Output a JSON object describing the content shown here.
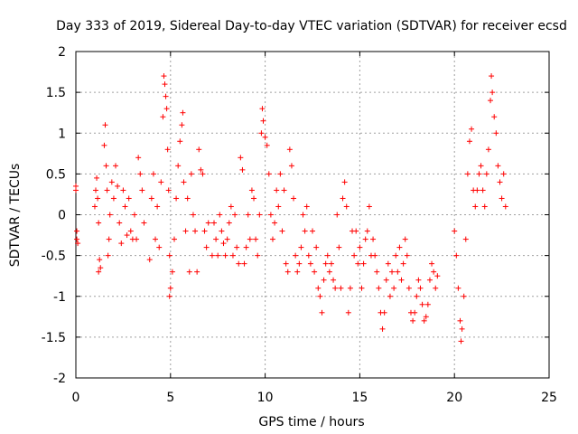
{
  "chart_data": {
    "type": "scatter",
    "title": "Day 333 of 2019, Sidereal Day-to-day VTEC variation (SDTVAR) for receiver ecsd",
    "xlabel": "GPS time / hours",
    "ylabel": "SDTVAR / TECUs",
    "xlim": [
      0,
      25
    ],
    "ylim": [
      -2,
      2
    ],
    "grid": true,
    "xticks": [
      "0",
      "5",
      "10",
      "15",
      "20",
      "25"
    ],
    "yticks": [
      "-2",
      "-1.5",
      "-1",
      "-0.5",
      "0",
      "0.5",
      "1",
      "1.5",
      "2"
    ],
    "marker": "+",
    "color": "#ff0000",
    "series": [
      {
        "name": "SDTVAR",
        "points": [
          [
            0.0,
            0.35
          ],
          [
            0.0,
            0.3
          ],
          [
            0.05,
            -0.2
          ],
          [
            0.05,
            -0.3
          ],
          [
            0.1,
            -0.35
          ],
          [
            1.0,
            0.1
          ],
          [
            1.05,
            0.3
          ],
          [
            1.1,
            0.45
          ],
          [
            1.15,
            0.2
          ],
          [
            1.2,
            -0.1
          ],
          [
            1.25,
            -0.55
          ],
          [
            1.3,
            -0.65
          ],
          [
            1.2,
            -0.7
          ],
          [
            1.5,
            0.85
          ],
          [
            1.55,
            1.1
          ],
          [
            1.6,
            0.6
          ],
          [
            1.65,
            0.3
          ],
          [
            1.7,
            -0.5
          ],
          [
            1.75,
            -0.3
          ],
          [
            1.8,
            0.0
          ],
          [
            1.9,
            0.4
          ],
          [
            2.0,
            0.2
          ],
          [
            2.1,
            0.6
          ],
          [
            2.2,
            0.35
          ],
          [
            2.3,
            -0.1
          ],
          [
            2.4,
            -0.35
          ],
          [
            2.5,
            0.3
          ],
          [
            2.6,
            0.1
          ],
          [
            2.7,
            -0.25
          ],
          [
            2.8,
            0.2
          ],
          [
            2.9,
            -0.2
          ],
          [
            3.0,
            -0.3
          ],
          [
            3.1,
            0.0
          ],
          [
            3.2,
            -0.3
          ],
          [
            3.3,
            0.7
          ],
          [
            3.4,
            0.5
          ],
          [
            3.5,
            0.3
          ],
          [
            3.6,
            -0.1
          ],
          [
            3.9,
            -0.55
          ],
          [
            4.0,
            0.2
          ],
          [
            4.1,
            0.5
          ],
          [
            4.2,
            -0.3
          ],
          [
            4.3,
            0.1
          ],
          [
            4.4,
            -0.4
          ],
          [
            4.5,
            0.4
          ],
          [
            4.6,
            1.2
          ],
          [
            4.65,
            1.7
          ],
          [
            4.7,
            1.6
          ],
          [
            4.75,
            1.45
          ],
          [
            4.8,
            1.3
          ],
          [
            4.85,
            0.8
          ],
          [
            4.9,
            0.3
          ],
          [
            4.95,
            -0.5
          ],
          [
            5.0,
            -0.9
          ],
          [
            4.95,
            -1.0
          ],
          [
            5.1,
            -0.7
          ],
          [
            5.2,
            -0.3
          ],
          [
            5.3,
            0.2
          ],
          [
            5.4,
            0.6
          ],
          [
            5.5,
            0.9
          ],
          [
            5.6,
            1.1
          ],
          [
            5.65,
            1.25
          ],
          [
            5.7,
            0.4
          ],
          [
            5.8,
            -0.2
          ],
          [
            5.9,
            0.2
          ],
          [
            6.0,
            -0.7
          ],
          [
            6.1,
            0.5
          ],
          [
            6.2,
            0.0
          ],
          [
            6.3,
            -0.2
          ],
          [
            6.4,
            -0.7
          ],
          [
            6.5,
            0.8
          ],
          [
            6.6,
            0.55
          ],
          [
            6.7,
            0.5
          ],
          [
            6.8,
            -0.2
          ],
          [
            6.9,
            -0.4
          ],
          [
            7.0,
            -0.1
          ],
          [
            7.2,
            -0.5
          ],
          [
            7.3,
            -0.1
          ],
          [
            7.4,
            -0.3
          ],
          [
            7.5,
            -0.5
          ],
          [
            7.6,
            0.0
          ],
          [
            7.7,
            -0.2
          ],
          [
            7.8,
            -0.35
          ],
          [
            7.9,
            -0.5
          ],
          [
            8.0,
            -0.3
          ],
          [
            8.1,
            -0.1
          ],
          [
            8.2,
            0.1
          ],
          [
            8.3,
            -0.5
          ],
          [
            8.4,
            0.0
          ],
          [
            8.5,
            -0.4
          ],
          [
            8.6,
            -0.6
          ],
          [
            8.7,
            0.7
          ],
          [
            8.8,
            0.55
          ],
          [
            8.9,
            -0.6
          ],
          [
            9.0,
            -0.4
          ],
          [
            9.1,
            0.0
          ],
          [
            9.2,
            -0.3
          ],
          [
            9.3,
            0.3
          ],
          [
            9.4,
            0.2
          ],
          [
            9.5,
            -0.3
          ],
          [
            9.6,
            -0.5
          ],
          [
            9.7,
            0.0
          ],
          [
            9.8,
            1.0
          ],
          [
            9.85,
            1.3
          ],
          [
            9.9,
            1.15
          ],
          [
            10.0,
            0.95
          ],
          [
            10.1,
            0.85
          ],
          [
            10.2,
            0.5
          ],
          [
            10.3,
            0.0
          ],
          [
            10.4,
            -0.3
          ],
          [
            10.5,
            -0.1
          ],
          [
            10.6,
            0.3
          ],
          [
            10.7,
            0.1
          ],
          [
            10.8,
            0.5
          ],
          [
            10.9,
            -0.2
          ],
          [
            11.0,
            0.3
          ],
          [
            11.1,
            -0.6
          ],
          [
            11.2,
            -0.7
          ],
          [
            11.3,
            0.8
          ],
          [
            11.4,
            0.6
          ],
          [
            11.5,
            0.2
          ],
          [
            11.6,
            -0.5
          ],
          [
            11.7,
            -0.7
          ],
          [
            11.8,
            -0.6
          ],
          [
            11.9,
            -0.4
          ],
          [
            12.0,
            0.0
          ],
          [
            12.1,
            -0.2
          ],
          [
            12.2,
            0.1
          ],
          [
            12.3,
            -0.5
          ],
          [
            12.4,
            -0.6
          ],
          [
            12.5,
            -0.2
          ],
          [
            12.6,
            -0.7
          ],
          [
            12.7,
            -0.4
          ],
          [
            12.8,
            -0.9
          ],
          [
            12.9,
            -1.0
          ],
          [
            13.0,
            -1.2
          ],
          [
            13.1,
            -0.8
          ],
          [
            13.2,
            -0.6
          ],
          [
            13.3,
            -0.5
          ],
          [
            13.4,
            -0.7
          ],
          [
            13.5,
            -0.6
          ],
          [
            13.6,
            -0.8
          ],
          [
            13.7,
            -0.9
          ],
          [
            13.8,
            0.0
          ],
          [
            13.9,
            -0.4
          ],
          [
            14.0,
            -0.9
          ],
          [
            14.1,
            0.2
          ],
          [
            14.2,
            0.4
          ],
          [
            14.3,
            0.1
          ],
          [
            14.4,
            -1.2
          ],
          [
            14.5,
            -0.9
          ],
          [
            14.6,
            -0.2
          ],
          [
            14.7,
            -0.5
          ],
          [
            14.8,
            -0.2
          ],
          [
            14.9,
            -0.6
          ],
          [
            15.0,
            -0.4
          ],
          [
            15.1,
            -0.9
          ],
          [
            15.2,
            -0.6
          ],
          [
            15.3,
            -0.3
          ],
          [
            15.4,
            -0.2
          ],
          [
            15.5,
            0.1
          ],
          [
            15.6,
            -0.5
          ],
          [
            15.7,
            -0.3
          ],
          [
            15.8,
            -0.5
          ],
          [
            15.9,
            -0.7
          ],
          [
            16.0,
            -0.9
          ],
          [
            16.1,
            -1.2
          ],
          [
            16.2,
            -1.4
          ],
          [
            16.3,
            -1.2
          ],
          [
            16.4,
            -0.8
          ],
          [
            16.5,
            -0.6
          ],
          [
            16.6,
            -1.0
          ],
          [
            16.7,
            -0.7
          ],
          [
            16.8,
            -0.9
          ],
          [
            16.9,
            -0.5
          ],
          [
            17.0,
            -0.7
          ],
          [
            17.1,
            -0.4
          ],
          [
            17.2,
            -0.8
          ],
          [
            17.3,
            -0.6
          ],
          [
            17.4,
            -0.3
          ],
          [
            17.5,
            -0.5
          ],
          [
            17.6,
            -0.9
          ],
          [
            17.7,
            -1.2
          ],
          [
            17.8,
            -1.3
          ],
          [
            17.9,
            -1.2
          ],
          [
            18.0,
            -1.0
          ],
          [
            18.1,
            -0.8
          ],
          [
            18.2,
            -0.9
          ],
          [
            18.3,
            -1.1
          ],
          [
            18.4,
            -1.3
          ],
          [
            18.5,
            -1.25
          ],
          [
            18.6,
            -1.1
          ],
          [
            18.7,
            -0.8
          ],
          [
            18.8,
            -0.6
          ],
          [
            18.9,
            -0.7
          ],
          [
            19.0,
            -0.9
          ],
          [
            19.1,
            -0.75
          ],
          [
            20.0,
            -0.2
          ],
          [
            20.1,
            -0.5
          ],
          [
            20.2,
            -0.9
          ],
          [
            20.3,
            -1.3
          ],
          [
            20.35,
            -1.55
          ],
          [
            20.4,
            -1.4
          ],
          [
            20.5,
            -1.0
          ],
          [
            20.6,
            -0.3
          ],
          [
            20.7,
            0.5
          ],
          [
            20.8,
            0.9
          ],
          [
            20.9,
            1.05
          ],
          [
            21.0,
            0.3
          ],
          [
            21.1,
            0.1
          ],
          [
            21.2,
            0.3
          ],
          [
            21.3,
            0.5
          ],
          [
            21.4,
            0.6
          ],
          [
            21.5,
            0.3
          ],
          [
            21.6,
            0.1
          ],
          [
            21.7,
            0.5
          ],
          [
            21.8,
            0.8
          ],
          [
            21.9,
            1.4
          ],
          [
            21.95,
            1.7
          ],
          [
            22.0,
            1.5
          ],
          [
            22.1,
            1.2
          ],
          [
            22.2,
            1.0
          ],
          [
            22.3,
            0.6
          ],
          [
            22.4,
            0.4
          ],
          [
            22.5,
            0.2
          ],
          [
            22.6,
            0.5
          ],
          [
            22.7,
            0.1
          ]
        ]
      }
    ]
  }
}
